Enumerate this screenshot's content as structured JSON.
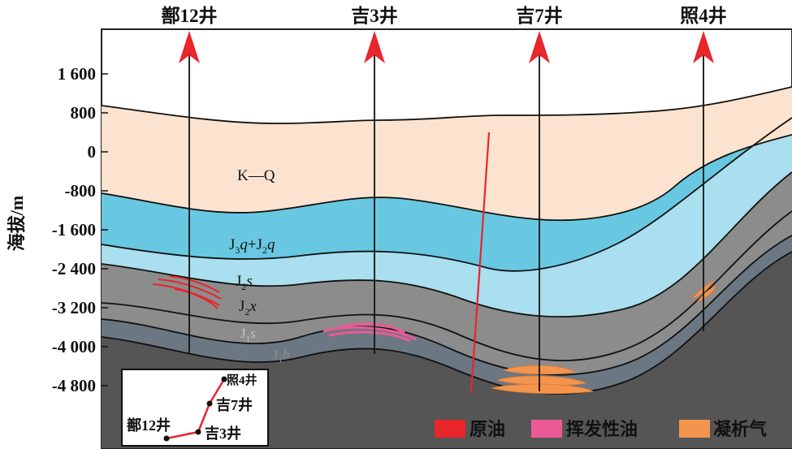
{
  "wells": [
    {
      "name": "鄯12井"
    },
    {
      "name": "吉3井"
    },
    {
      "name": "吉7井"
    },
    {
      "name": "照4井"
    }
  ],
  "axis": {
    "label": "海拔/m",
    "ticks": [
      "1 600",
      "800",
      "0",
      "-800",
      "-1 600",
      "-2 400",
      "-3 200",
      "-4 000",
      "-4 800"
    ]
  },
  "layers": {
    "kq": "K—Q",
    "j3q_j2q": {
      "a": "J",
      "a_sub": "3",
      "a_it": "q",
      "plus": "+J",
      "b_sub": "2",
      "b_it": "q"
    },
    "j2s": {
      "a": "J",
      "sub": "2",
      "it": "s"
    },
    "j2x": {
      "a": "J",
      "sub": "2",
      "it": "x"
    },
    "j1s": {
      "a": "J",
      "sub": "1",
      "it": "s"
    },
    "j1b": {
      "a": "J",
      "sub": "1",
      "it": "b"
    }
  },
  "legend": [
    {
      "label": "原油",
      "color": "#e8262b"
    },
    {
      "label": "挥发性油",
      "color": "#ec5a96"
    },
    {
      "label": "凝析气",
      "color": "#f3954f"
    }
  ],
  "inset": {
    "wells": [
      "照4井",
      "吉7井",
      "鄯12井",
      "吉3井"
    ]
  },
  "colors": {
    "kq": "#fbe3cf",
    "j3q": "#68c8e2",
    "j2s": "#a9dfee",
    "j2x": "#8c8c8c",
    "j1s": "#6b7782",
    "j1b": "#555555",
    "arrow": "#e8262b",
    "fault": "#e8262b"
  }
}
